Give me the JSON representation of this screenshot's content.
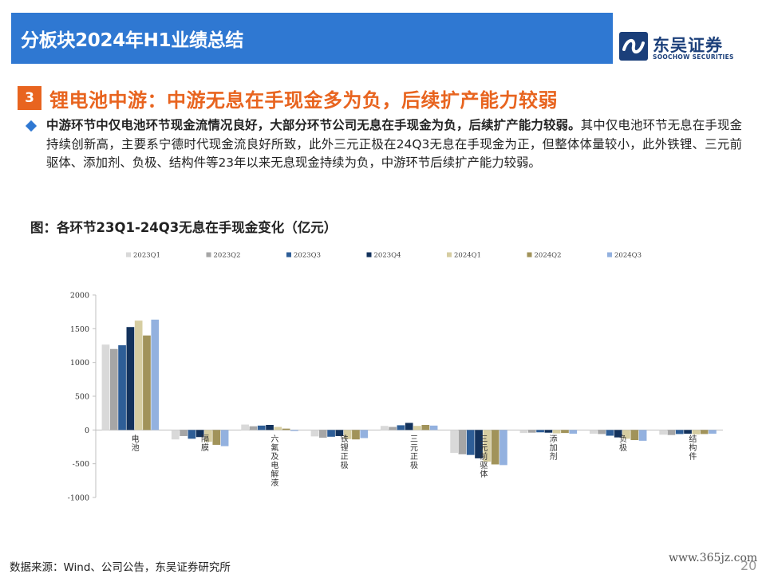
{
  "header": {
    "title": "分板块2024年H1业绩总结"
  },
  "logo": {
    "name_cn": "东吴证券",
    "name_en": "SOOCHOW SECURITIES"
  },
  "section": {
    "number": "3",
    "title": "锂电池中游：中游无息在手现金多为负，后续扩产能力较弱"
  },
  "bullet": {
    "bold": "中游环节中仅电池环节现金流情况良好，大部分环节公司无息在手现金为负，后续扩产能力较弱。",
    "text": "其中仅电池环节无息在手现金持续创新高，主要系宁德时代现金流良好所致，此外三元正极在24Q3无息在手现金为正，但整体体量较小，此外铁锂、三元前驱体、添加剂、负极、结构件等23年以来无息现金持续为负，中游环节后续扩产能力较弱。"
  },
  "figure": {
    "title": "图：各环节23Q1-24Q3无息在手现金变化（亿元）"
  },
  "footer": {
    "source": "数据来源：Wind、公司公告，东吴证券研究所",
    "watermark": "www.365jz.com",
    "page": "20"
  },
  "colors": {
    "header": "#2f78d2",
    "accent": "#e8641f",
    "logo": "#1b3f7a"
  },
  "chart_data": {
    "type": "bar",
    "categories": [
      "电池",
      "隔膜",
      "六氟及电解液",
      "铁锂正极",
      "三元正极",
      "三元前驱体",
      "添加剂",
      "负极",
      "结构件"
    ],
    "series": [
      {
        "name": "2023Q1",
        "color": "#d9d9d9",
        "values": [
          1265,
          -140,
          80,
          -95,
          60,
          -340,
          -45,
          -55,
          -70
        ]
      },
      {
        "name": "2023Q2",
        "color": "#a6a6a6",
        "values": [
          1200,
          -90,
          55,
          -115,
          45,
          -360,
          -40,
          -60,
          -75
        ]
      },
      {
        "name": "2023Q3",
        "color": "#2e5e97",
        "values": [
          1255,
          -130,
          65,
          -100,
          70,
          -370,
          -35,
          -85,
          -60
        ]
      },
      {
        "name": "2023Q4",
        "color": "#13325c",
        "values": [
          1525,
          -105,
          75,
          -90,
          105,
          -420,
          -40,
          -110,
          -55
        ]
      },
      {
        "name": "2024Q1",
        "color": "#d6cda1",
        "values": [
          1620,
          -175,
          45,
          -135,
          60,
          -470,
          -50,
          -130,
          -65
        ]
      },
      {
        "name": "2024Q2",
        "color": "#a1935a",
        "values": [
          1400,
          -220,
          20,
          -140,
          75,
          -510,
          -45,
          -150,
          -60
        ]
      },
      {
        "name": "2024Q3",
        "color": "#93b1df",
        "values": [
          1635,
          -240,
          -15,
          -120,
          65,
          -520,
          -55,
          -160,
          -55
        ]
      }
    ],
    "ylim": [
      -1000,
      2000
    ],
    "yticks": [
      2000,
      1500,
      1000,
      500,
      0,
      -500,
      -1000
    ],
    "legend": "top"
  }
}
